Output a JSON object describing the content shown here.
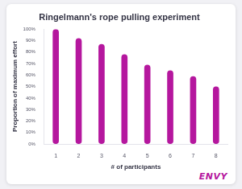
{
  "chart_data": {
    "type": "bar",
    "title": "Ringelmann's rope pulling experiment",
    "x_label": "# of participants",
    "y_label": "Proportion of maximum effort",
    "categories": [
      "1",
      "2",
      "3",
      "4",
      "5",
      "6",
      "7",
      "8"
    ],
    "values": [
      100,
      92,
      87,
      78,
      69,
      64,
      59,
      50
    ],
    "color": "#b5179e",
    "ylim": [
      0,
      100
    ],
    "yticks": [
      {
        "value": 0,
        "label": "0%"
      },
      {
        "value": 10,
        "label": "10%"
      },
      {
        "value": 20,
        "label": "20%"
      },
      {
        "value": 30,
        "label": "30%"
      },
      {
        "value": 40,
        "label": "40%"
      },
      {
        "value": 50,
        "label": "50%"
      },
      {
        "value": 60,
        "label": "60%"
      },
      {
        "value": 70,
        "label": "70%"
      },
      {
        "value": 80,
        "label": "80%"
      },
      {
        "value": 90,
        "label": "90%"
      },
      {
        "value": 100,
        "label": "100%"
      }
    ],
    "grid": false,
    "annotations": [
      "ENVY"
    ]
  }
}
